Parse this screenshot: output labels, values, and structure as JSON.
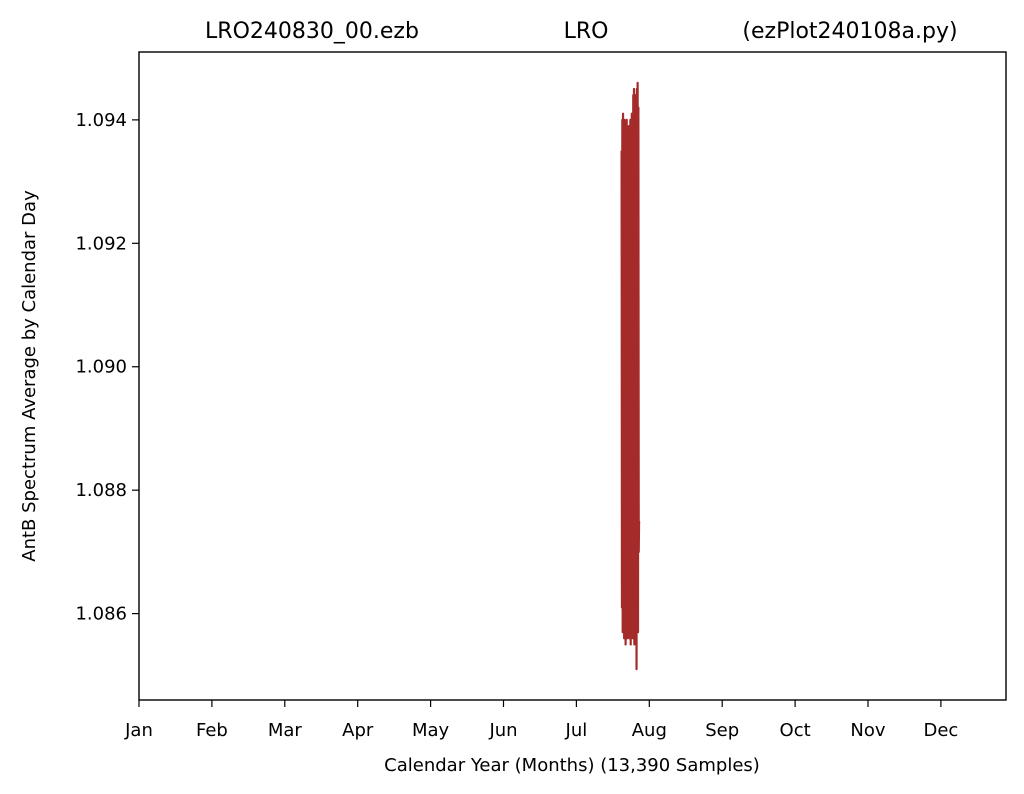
{
  "chart_data": {
    "type": "line",
    "title_left": "LRO240830_00.ezb",
    "title_center": "LRO",
    "title_right": "(ezPlot240108a.py)",
    "xlabel": "Calendar Year (Months) (13,390 Samples)",
    "ylabel": "AntB Spectrum Average by Calendar Day",
    "x_ticks": [
      "Jan",
      "Feb",
      "Mar",
      "Apr",
      "May",
      "Jun",
      "Jul",
      "Aug",
      "Sep",
      "Oct",
      "Nov",
      "Dec"
    ],
    "y_ticks": [
      "1.086",
      "1.088",
      "1.090",
      "1.092",
      "1.094"
    ],
    "y_tick_values": [
      1.086,
      1.088,
      1.09,
      1.092,
      1.094
    ],
    "ylim": [
      1.0846,
      1.0951
    ],
    "xlim": [
      0,
      12
    ],
    "grid": false,
    "line_color": "#a52a2a",
    "data_window_months": [
      6.62,
      6.86
    ],
    "series": [
      {
        "x": [
          6.62,
          6.625,
          6.63,
          6.635,
          6.64,
          6.645,
          6.65,
          6.655,
          6.66,
          6.665,
          6.67,
          6.675,
          6.68,
          6.685,
          6.69,
          6.695,
          6.7,
          6.705,
          6.71,
          6.715,
          6.72,
          6.725,
          6.73,
          6.735,
          6.74,
          6.745,
          6.75,
          6.755,
          6.76,
          6.765,
          6.77,
          6.775,
          6.78,
          6.785,
          6.79,
          6.795,
          6.8,
          6.805,
          6.81,
          6.815,
          6.82,
          6.825,
          6.83,
          6.835,
          6.84,
          6.845,
          6.85,
          6.855,
          6.86
        ],
        "y": [
          1.0935,
          1.0861,
          1.094,
          1.0857,
          1.0941,
          1.086,
          1.0938,
          1.0856,
          1.094,
          1.0858,
          1.0937,
          1.0855,
          1.0939,
          1.0857,
          1.094,
          1.0856,
          1.0938,
          1.0859,
          1.0936,
          1.0857,
          1.0939,
          1.0856,
          1.0937,
          1.0858,
          1.094,
          1.0855,
          1.0938,
          1.0857,
          1.0941,
          1.0858,
          1.0939,
          1.0856,
          1.0944,
          1.0857,
          1.0945,
          1.0855,
          1.0942,
          1.0856,
          1.0944,
          1.0857,
          1.0943,
          1.0851,
          1.0945,
          1.0858,
          1.0946,
          1.0857,
          1.0942,
          1.087,
          1.0875
        ]
      }
    ]
  }
}
